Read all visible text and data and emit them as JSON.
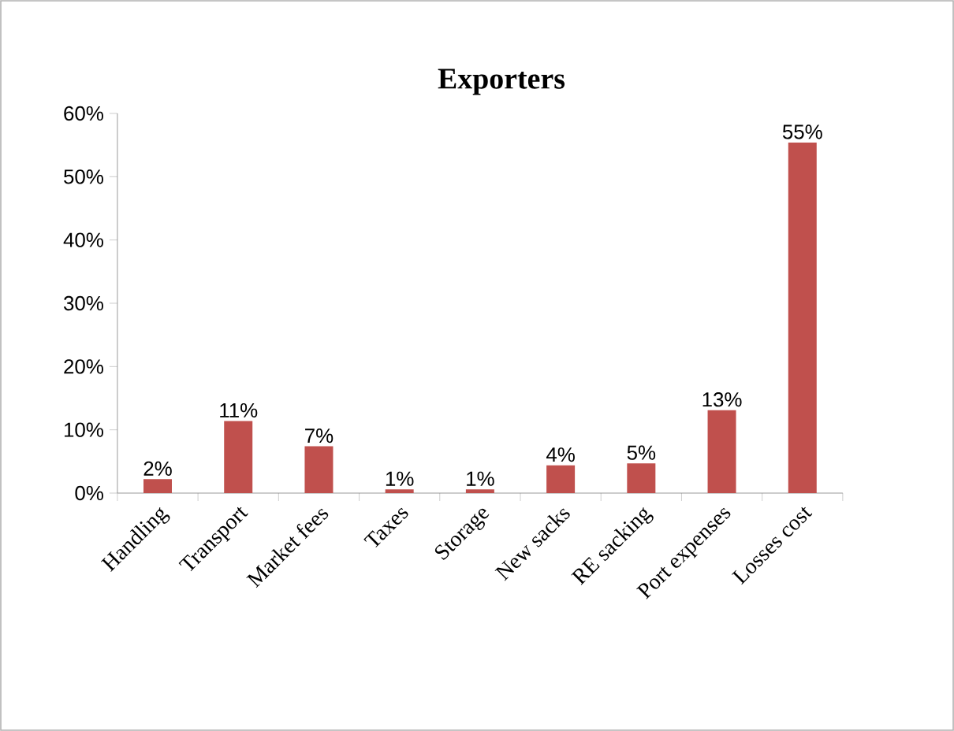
{
  "chart_data": {
    "type": "bar",
    "title": "Exporters",
    "categories": [
      "Handling",
      "Transport",
      "Market fees",
      "Taxes",
      "Storage",
      "New sacks",
      "RE sacking",
      "Port expenses",
      "Losses cost"
    ],
    "values": [
      2.2,
      11.4,
      7.4,
      0.6,
      0.6,
      4.4,
      4.7,
      13.1,
      55.4
    ],
    "value_labels": [
      "2%",
      "11%",
      "7%",
      "1%",
      "1%",
      "4%",
      "5%",
      "13%",
      "55%"
    ],
    "color": "#c0504d",
    "ylim": [
      0,
      60
    ],
    "yticks": [
      {
        "value": 0,
        "label": "0%"
      },
      {
        "value": 10,
        "label": "10%"
      },
      {
        "value": 20,
        "label": "20%"
      },
      {
        "value": 30,
        "label": "30%"
      },
      {
        "value": 40,
        "label": "40%"
      },
      {
        "value": 50,
        "label": "50%"
      },
      {
        "value": 60,
        "label": "60%"
      }
    ]
  }
}
